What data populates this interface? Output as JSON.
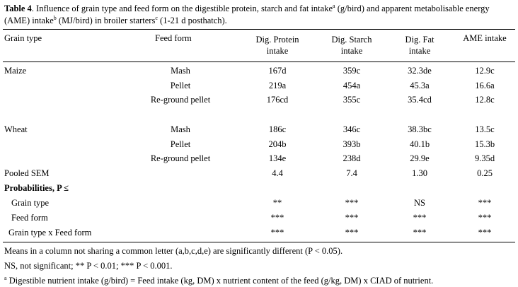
{
  "caption": {
    "label": "Table 4",
    "text_a": ". Influence of grain type and feed form on the digestible protein, starch and fat intake",
    "sup_a": "a",
    "text_b": " (g/bird) and apparent metabolisable energy (AME) intake",
    "sup_b": "b",
    "text_c": " (MJ/bird) in broiler starters",
    "sup_c": "c",
    "text_d": " (1-21 d posthatch)."
  },
  "headers": {
    "grain_type": "Grain type",
    "feed_form": "Feed form",
    "protein_l1": "Dig. Protein",
    "protein_l2": "intake",
    "starch_l1": "Dig. Starch",
    "starch_l2": "intake",
    "fat_l1": "Dig. Fat",
    "fat_l2": "intake",
    "ame": "AME intake"
  },
  "groups": [
    {
      "grain": "Maize",
      "rows": [
        {
          "form": "Mash",
          "protein": "167d",
          "starch": "359c",
          "fat": "32.3de",
          "ame": "12.9c"
        },
        {
          "form": "Pellet",
          "protein": "219a",
          "starch": "454a",
          "fat": "45.3a",
          "ame": "16.6a"
        },
        {
          "form": "Re-ground pellet",
          "protein": "176cd",
          "starch": "355c",
          "fat": "35.4cd",
          "ame": "12.8c"
        }
      ]
    },
    {
      "grain": "Wheat",
      "rows": [
        {
          "form": "Mash",
          "protein": "186c",
          "starch": "346c",
          "fat": "38.3bc",
          "ame": "13.5c"
        },
        {
          "form": "Pellet",
          "protein": "204b",
          "starch": "393b",
          "fat": "40.1b",
          "ame": "15.3b"
        },
        {
          "form": "Re-ground pellet",
          "protein": "134e",
          "starch": "238d",
          "fat": "29.9e",
          "ame": "9.35d"
        }
      ]
    }
  ],
  "sem": {
    "label": "Pooled SEM",
    "protein": "4.4",
    "starch": "7.4",
    "fat": "1.30",
    "ame": "0.25"
  },
  "probabilities": {
    "label": "Probabilities, P ≤",
    "rows": [
      {
        "label": "Grain type",
        "protein": "**",
        "starch": "***",
        "fat": "NS",
        "ame": "***"
      },
      {
        "label": "Feed form",
        "protein": "***",
        "starch": "***",
        "fat": "***",
        "ame": "***"
      },
      {
        "label": "Grain type x Feed form",
        "protein": "***",
        "starch": "***",
        "fat": "***",
        "ame": "***"
      }
    ]
  },
  "footnotes": {
    "means": "Means in a column not sharing a common letter (a,b,c,d,e) are significantly different (P < 0.05).",
    "ns": "NS, not significant; ** P < 0.01; *** P < 0.001.",
    "a_sup": "a",
    "a_text": " Digestible nutrient intake (g/bird) = Feed intake (kg, DM) x nutrient content of the feed (g/kg, DM) x CIAD of nutrient."
  }
}
